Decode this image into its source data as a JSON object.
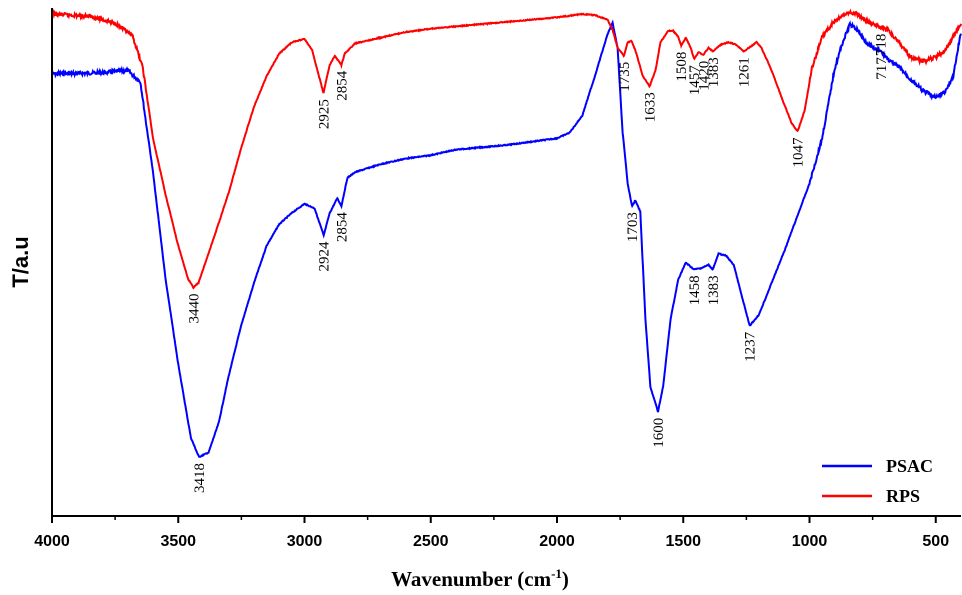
{
  "chart_data": {
    "type": "line",
    "xlabel": "Wavenumber (cm",
    "xlabel_sup": "-1",
    "xlabel_close": ")",
    "ylabel": "T/a.u",
    "xlim": [
      4000,
      400
    ],
    "xaxis_reversed": true,
    "xticks": [
      "4000",
      "3500",
      "3000",
      "2500",
      "2000",
      "1500",
      "1000",
      "500"
    ],
    "legend_position": "bottom-right",
    "y_scale_note": "relative transmittance (arbitrary units)",
    "series": [
      {
        "name": "PSAC",
        "color": "#0000ff",
        "points": [
          [
            4000,
            53
          ],
          [
            3800,
            52
          ],
          [
            3700,
            50
          ],
          [
            3650,
            60
          ],
          [
            3600,
            140
          ],
          [
            3550,
            235
          ],
          [
            3500,
            310
          ],
          [
            3450,
            375
          ],
          [
            3418,
            392
          ],
          [
            3380,
            388
          ],
          [
            3340,
            362
          ],
          [
            3300,
            320
          ],
          [
            3250,
            275
          ],
          [
            3200,
            238
          ],
          [
            3150,
            205
          ],
          [
            3100,
            186
          ],
          [
            3050,
            176
          ],
          [
            3000,
            168
          ],
          [
            2960,
            172
          ],
          [
            2924,
            196
          ],
          [
            2900,
            176
          ],
          [
            2870,
            163
          ],
          [
            2854,
            170
          ],
          [
            2830,
            145
          ],
          [
            2800,
            140
          ],
          [
            2700,
            133
          ],
          [
            2600,
            128
          ],
          [
            2500,
            125
          ],
          [
            2400,
            120
          ],
          [
            2300,
            118
          ],
          [
            2200,
            116
          ],
          [
            2100,
            113
          ],
          [
            2000,
            110
          ],
          [
            1950,
            105
          ],
          [
            1900,
            90
          ],
          [
            1850,
            55
          ],
          [
            1800,
            18
          ],
          [
            1780,
            8
          ],
          [
            1760,
            30
          ],
          [
            1740,
            105
          ],
          [
            1720,
            150
          ],
          [
            1703,
            170
          ],
          [
            1690,
            165
          ],
          [
            1670,
            175
          ],
          [
            1650,
            270
          ],
          [
            1630,
            330
          ],
          [
            1600,
            352
          ],
          [
            1580,
            330
          ],
          [
            1550,
            270
          ],
          [
            1520,
            235
          ],
          [
            1490,
            220
          ],
          [
            1458,
            226
          ],
          [
            1430,
            225
          ],
          [
            1400,
            222
          ],
          [
            1383,
            226
          ],
          [
            1360,
            212
          ],
          [
            1330,
            214
          ],
          [
            1300,
            222
          ],
          [
            1270,
            248
          ],
          [
            1237,
            276
          ],
          [
            1200,
            266
          ],
          [
            1150,
            238
          ],
          [
            1100,
            210
          ],
          [
            1050,
            180
          ],
          [
            1000,
            150
          ],
          [
            950,
            110
          ],
          [
            900,
            48
          ],
          [
            870,
            26
          ],
          [
            840,
            9
          ],
          [
            810,
            14
          ],
          [
            780,
            24
          ],
          [
            750,
            30
          ],
          [
            717,
            33
          ],
          [
            680,
            42
          ],
          [
            640,
            48
          ],
          [
            600,
            58
          ],
          [
            550,
            68
          ],
          [
            500,
            74
          ],
          [
            460,
            68
          ],
          [
            430,
            55
          ],
          [
            410,
            28
          ],
          [
            400,
            17
          ]
        ]
      },
      {
        "name": "RPS",
        "color": "#ff0000",
        "points": [
          [
            4000,
            0
          ],
          [
            3850,
            2
          ],
          [
            3750,
            8
          ],
          [
            3680,
            20
          ],
          [
            3640,
            48
          ],
          [
            3600,
            110
          ],
          [
            3550,
            160
          ],
          [
            3500,
            205
          ],
          [
            3460,
            235
          ],
          [
            3440,
            242
          ],
          [
            3420,
            238
          ],
          [
            3400,
            225
          ],
          [
            3350,
            192
          ],
          [
            3300,
            158
          ],
          [
            3250,
            118
          ],
          [
            3200,
            82
          ],
          [
            3150,
            55
          ],
          [
            3100,
            35
          ],
          [
            3050,
            25
          ],
          [
            3000,
            22
          ],
          [
            2970,
            32
          ],
          [
            2925,
            70
          ],
          [
            2900,
            45
          ],
          [
            2880,
            37
          ],
          [
            2854,
            45
          ],
          [
            2840,
            35
          ],
          [
            2800,
            26
          ],
          [
            2700,
            21
          ],
          [
            2600,
            16
          ],
          [
            2500,
            13
          ],
          [
            2400,
            11
          ],
          [
            2300,
            9
          ],
          [
            2200,
            7
          ],
          [
            2100,
            5
          ],
          [
            2000,
            3
          ],
          [
            1900,
            0
          ],
          [
            1850,
            1
          ],
          [
            1800,
            5
          ],
          [
            1780,
            14
          ],
          [
            1760,
            30
          ],
          [
            1735,
            37
          ],
          [
            1720,
            25
          ],
          [
            1705,
            24
          ],
          [
            1690,
            32
          ],
          [
            1660,
            55
          ],
          [
            1633,
            64
          ],
          [
            1610,
            50
          ],
          [
            1590,
            25
          ],
          [
            1560,
            15
          ],
          [
            1540,
            15
          ],
          [
            1520,
            20
          ],
          [
            1508,
            28
          ],
          [
            1490,
            21
          ],
          [
            1470,
            30
          ],
          [
            1457,
            40
          ],
          [
            1440,
            34
          ],
          [
            1420,
            36
          ],
          [
            1400,
            30
          ],
          [
            1383,
            33
          ],
          [
            1350,
            27
          ],
          [
            1320,
            25
          ],
          [
            1290,
            27
          ],
          [
            1261,
            33
          ],
          [
            1240,
            30
          ],
          [
            1210,
            25
          ],
          [
            1190,
            30
          ],
          [
            1150,
            50
          ],
          [
            1100,
            80
          ],
          [
            1070,
            97
          ],
          [
            1047,
            104
          ],
          [
            1020,
            86
          ],
          [
            990,
            48
          ],
          [
            950,
            20
          ],
          [
            900,
            6
          ],
          [
            850,
            -1
          ],
          [
            820,
            -1
          ],
          [
            800,
            2
          ],
          [
            760,
            8
          ],
          [
            718,
            12
          ],
          [
            690,
            14
          ],
          [
            650,
            24
          ],
          [
            600,
            38
          ],
          [
            550,
            42
          ],
          [
            500,
            38
          ],
          [
            460,
            32
          ],
          [
            430,
            20
          ],
          [
            410,
            12
          ],
          [
            400,
            9
          ]
        ]
      }
    ],
    "annotations": [
      {
        "label": "3440",
        "wavenumber": 3440,
        "series": "RPS"
      },
      {
        "label": "2925",
        "wavenumber": 2925,
        "series": "RPS"
      },
      {
        "label": "2854",
        "wavenumber": 2854,
        "series": "RPS"
      },
      {
        "label": "1735",
        "wavenumber": 1735,
        "series": "RPS"
      },
      {
        "label": "1633",
        "wavenumber": 1633,
        "series": "RPS"
      },
      {
        "label": "1508",
        "wavenumber": 1508,
        "series": "RPS"
      },
      {
        "label": "1457",
        "wavenumber": 1457,
        "series": "RPS"
      },
      {
        "label": "1420",
        "wavenumber": 1420,
        "series": "RPS"
      },
      {
        "label": "1383",
        "wavenumber": 1383,
        "series": "RPS"
      },
      {
        "label": "1261",
        "wavenumber": 1261,
        "series": "RPS"
      },
      {
        "label": "1047",
        "wavenumber": 1047,
        "series": "RPS"
      },
      {
        "label": "718",
        "wavenumber": 718,
        "series": "RPS"
      },
      {
        "label": "3418",
        "wavenumber": 3418,
        "series": "PSAC"
      },
      {
        "label": "2924",
        "wavenumber": 2924,
        "series": "PSAC"
      },
      {
        "label": "2854",
        "wavenumber": 2854,
        "series": "PSAC"
      },
      {
        "label": "1703",
        "wavenumber": 1703,
        "series": "PSAC"
      },
      {
        "label": "1600",
        "wavenumber": 1600,
        "series": "PSAC"
      },
      {
        "label": "1458",
        "wavenumber": 1458,
        "series": "PSAC"
      },
      {
        "label": "1383",
        "wavenumber": 1383,
        "series": "PSAC"
      },
      {
        "label": "1237",
        "wavenumber": 1237,
        "series": "PSAC"
      },
      {
        "label": "717",
        "wavenumber": 717,
        "series": "PSAC"
      }
    ]
  }
}
